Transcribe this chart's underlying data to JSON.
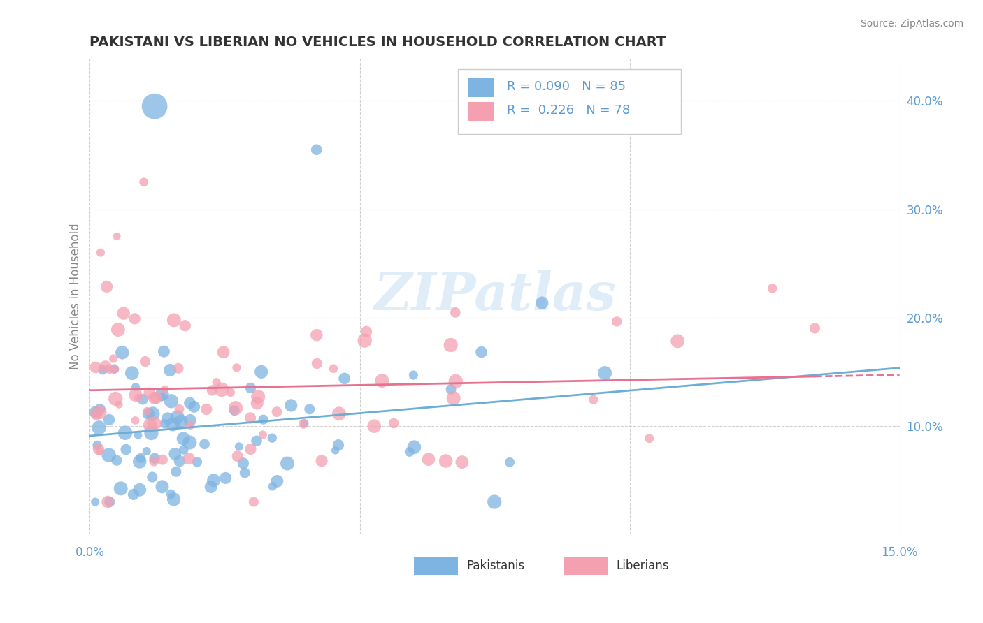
{
  "title": "PAKISTANI VS LIBERIAN NO VEHICLES IN HOUSEHOLD CORRELATION CHART",
  "source": "Source: ZipAtlas.com",
  "ylabel": "No Vehicles in Household",
  "right_yticklabels": [
    "10.0%",
    "20.0%",
    "30.0%",
    "40.0%"
  ],
  "right_yticks": [
    0.1,
    0.2,
    0.3,
    0.4
  ],
  "xlim": [
    0.0,
    0.15
  ],
  "ylim": [
    0.0,
    0.44
  ],
  "blue_color": "#7eb4e2",
  "pink_color": "#f4a0b0",
  "trend_blue_color": "#6aaed6",
  "trend_pink_color": "#e87090",
  "watermark": "ZIPatlas",
  "watermark_color": "#daeaf7",
  "legend_text_blue": "R = 0.090   N = 85",
  "legend_text_pink": "R =  0.226   N = 78",
  "bottom_label_blue": "Pakistanis",
  "bottom_label_pink": "Liberians",
  "label_color": "#5b9bd5",
  "grid_color": "#d0d0d0",
  "axis_label_color": "#888888",
  "title_color": "#333333"
}
